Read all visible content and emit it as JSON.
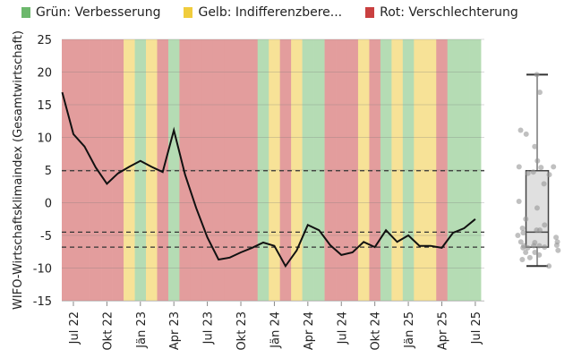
{
  "chart_data": {
    "type": "line",
    "title": "",
    "ylabel": "WIFO-Wirtschaftsklimaindex (Gesamtwirtschaft)",
    "xlabel": "",
    "ylim": [
      -15,
      25
    ],
    "yticks": [
      25,
      20,
      15,
      10,
      5,
      0,
      -5,
      -10,
      -15
    ],
    "grid": true,
    "legend_position": "top",
    "legend": [
      {
        "key": "green",
        "label": "Grün: Verbesserung",
        "color": "#6cb86c"
      },
      {
        "key": "yellow",
        "label": "Gelb: Indifferenzbere...",
        "color": "#f0cc3c"
      },
      {
        "key": "red",
        "label": "Rot: Verschlechterung",
        "color": "#c94040"
      }
    ],
    "band_colors": {
      "green": "#b5dcb4",
      "yellow": "#f7e297",
      "red": "#e39d9d"
    },
    "x_tick_labels": [
      "Jul 22",
      "Okt 22",
      "Jän 23",
      "Apr 23",
      "Jul 23",
      "Okt 23",
      "Jän 24",
      "Apr 24",
      "Jul 24",
      "Okt 24",
      "Jän 25",
      "Apr 25",
      "Jul 25"
    ],
    "x_tick_month_index": [
      1,
      4,
      7,
      10,
      13,
      16,
      19,
      22,
      25,
      28,
      31,
      34,
      37
    ],
    "months": [
      "Jun 22",
      "Jul 22",
      "Aug 22",
      "Sep 22",
      "Okt 22",
      "Nov 22",
      "Dez 22",
      "Jän 23",
      "Feb 23",
      "Mär 23",
      "Apr 23",
      "Mai 23",
      "Jun 23",
      "Jul 23",
      "Aug 23",
      "Sep 23",
      "Okt 23",
      "Nov 23",
      "Dez 23",
      "Jän 24",
      "Feb 24",
      "Mär 24",
      "Apr 24",
      "Mai 24",
      "Jun 24",
      "Jul 24",
      "Aug 24",
      "Sep 24",
      "Okt 24",
      "Nov 24",
      "Dez 24",
      "Jän 25",
      "Feb 25",
      "Mär 25",
      "Apr 25",
      "Mai 25",
      "Jun 25",
      "Jul 25"
    ],
    "values": [
      16.9,
      10.5,
      8.6,
      5.4,
      2.9,
      4.5,
      5.5,
      6.4,
      5.5,
      4.7,
      11.1,
      4.3,
      -0.8,
      -5.3,
      -8.7,
      -8.4,
      -7.6,
      -6.9,
      -6.1,
      -6.6,
      -9.7,
      -7.3,
      -3.4,
      -4.2,
      -6.5,
      -8.0,
      -7.6,
      -6.0,
      -6.8,
      -4.2,
      -6.0,
      -5.0,
      -6.6,
      -6.6,
      -6.9,
      -4.6,
      -3.9,
      -2.5
    ],
    "bands": [
      "red",
      "red",
      "red",
      "red",
      "red",
      "red",
      "yellow",
      "green",
      "yellow",
      "red",
      "green",
      "red",
      "red",
      "red",
      "red",
      "red",
      "red",
      "red",
      "green",
      "yellow",
      "red",
      "yellow",
      "green",
      "green",
      "red",
      "red",
      "red",
      "yellow",
      "red",
      "green",
      "yellow",
      "green",
      "yellow",
      "yellow",
      "red",
      "green",
      "green",
      "green"
    ],
    "reference_lines": [
      {
        "name": "upper-quartile",
        "value": 4.9
      },
      {
        "name": "median",
        "value": -4.5
      },
      {
        "name": "lower-quartile",
        "value": -6.8
      }
    ],
    "boxplot": {
      "whisker_high": 19.6,
      "q3": 4.9,
      "median": -4.5,
      "q1": -6.8,
      "whisker_low": -9.7,
      "points": [
        19.6,
        16.9,
        11.1,
        10.5,
        8.6,
        6.4,
        5.5,
        5.5,
        5.4,
        4.7,
        4.5,
        4.3,
        2.9,
        0.2,
        -0.8,
        -2.5,
        -3.4,
        -3.9,
        -4.2,
        -4.2,
        -4.6,
        -5.0,
        -5.3,
        -6.0,
        -6.0,
        -6.1,
        -6.5,
        -6.6,
        -6.6,
        -6.6,
        -6.8,
        -6.9,
        -6.9,
        -7.3,
        -7.6,
        -7.6,
        -8.0,
        -8.4,
        -8.7,
        -9.7
      ]
    }
  }
}
